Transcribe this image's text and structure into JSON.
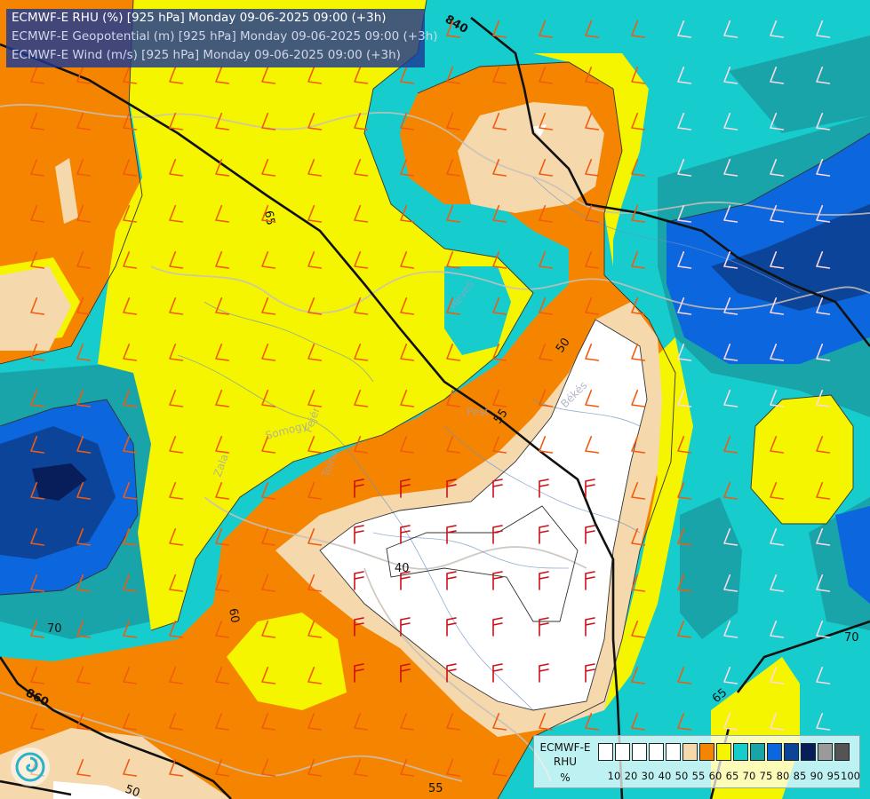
{
  "header": {
    "line1": "ECMWF-E RHU (%) [925 hPa] Monday 09-06-2025 09:00 (+3h)",
    "line2": "ECMWF-E Geopotential (m) [925 hPa] Monday 09-06-2025 09:00 (+3h)",
    "line3": "ECMWF-E Wind (m/s) [925 hPa] Monday 09-06-2025 09:00 (+3h)"
  },
  "legend": {
    "line1": "ECMWF-E",
    "line2": "RHU",
    "unit": "%",
    "ticks": [
      "10",
      "20",
      "30",
      "40",
      "50",
      "55",
      "60",
      "65",
      "70",
      "75",
      "80",
      "85",
      "90",
      "95",
      "100"
    ],
    "colors": [
      "#ffffff",
      "#ffffff",
      "#ffffff",
      "#ffffff",
      "#ffffff",
      "#f5d9ad",
      "#f58500",
      "#f5f500",
      "#16cccc",
      "#18a4a8",
      "#0c66dd",
      "#0c4499",
      "#081e5a",
      "#9a9a9a",
      "#545454"
    ]
  },
  "geopotential_labels": [
    "840",
    "860"
  ],
  "rhu_labels": [
    "65",
    "65",
    "65",
    "60",
    "50",
    "50",
    "55",
    "40",
    "55",
    "70",
    "70",
    "70",
    "65",
    "50",
    "55"
  ],
  "region_labels": [
    "Heves",
    "Pest",
    "Békés",
    "Somogy",
    "Fejér",
    "Tolna",
    "Zala"
  ],
  "logo_icon": "ecmwf-logo-icon"
}
